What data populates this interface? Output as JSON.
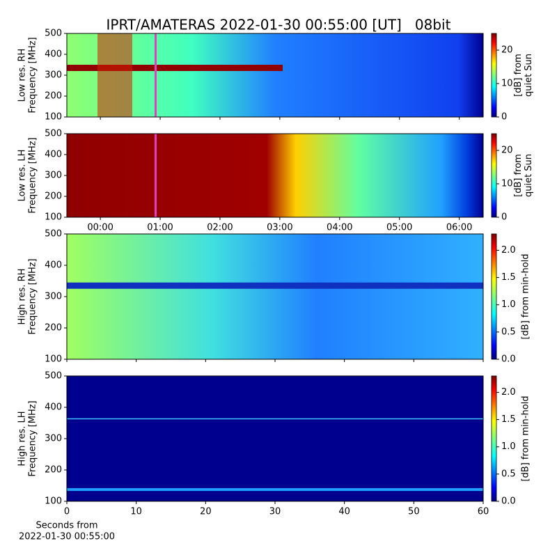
{
  "title": "IPRT/AMATERAS 2022-01-30 00:55:00 [UT]   08bit",
  "chart_data": [
    {
      "type": "heatmap",
      "ylabel": [
        "Low res. RH",
        "Frequency [MHz]"
      ],
      "ylim": [
        100,
        500
      ],
      "yticks": [
        100,
        200,
        300,
        400,
        500
      ],
      "xlim": [
        -0.56,
        6.4
      ],
      "clim": [
        0,
        25
      ],
      "cticks": [
        0,
        10,
        20
      ],
      "clabel": [
        "[dB] from",
        "quiet Sun"
      ]
    },
    {
      "type": "heatmap",
      "ylabel": [
        "Low res. LH",
        "Frequency [MHz]"
      ],
      "ylim": [
        100,
        500
      ],
      "yticks": [
        100,
        200,
        300,
        400,
        500
      ],
      "xlim": [
        -0.56,
        6.4
      ],
      "xticks": [
        {
          "value": 0,
          "label": "00:00"
        },
        {
          "value": 1,
          "label": "01:00"
        },
        {
          "value": 2,
          "label": "02:00"
        },
        {
          "value": 3,
          "label": "03:00"
        },
        {
          "value": 4,
          "label": "04:00"
        },
        {
          "value": 5,
          "label": "05:00"
        },
        {
          "value": 6,
          "label": "06:00"
        }
      ],
      "clim": [
        0,
        25
      ],
      "cticks": [
        0,
        10,
        20
      ],
      "clabel": [
        "[dB] from",
        "quiet Sun"
      ]
    },
    {
      "type": "heatmap",
      "ylabel": [
        "High res. RH",
        "Frequency [MHz]"
      ],
      "ylim": [
        100,
        500
      ],
      "yticks": [
        100,
        200,
        300,
        400,
        500
      ],
      "xlim": [
        0,
        60
      ],
      "clim": [
        0,
        2.3
      ],
      "cticks": [
        {
          "value": 0,
          "label": "0.0"
        },
        {
          "value": 0.5,
          "label": "0.5"
        },
        {
          "value": 1,
          "label": "1.0"
        },
        {
          "value": 1.5,
          "label": "1.5"
        },
        {
          "value": 2,
          "label": "2.0"
        }
      ],
      "clabel": [
        "[dB] from min-hold"
      ]
    },
    {
      "type": "heatmap",
      "ylabel": [
        "High res. LH",
        "Frequency [MHz]"
      ],
      "ylim": [
        100,
        500
      ],
      "yticks": [
        100,
        200,
        300,
        400,
        500
      ],
      "xlim": [
        0,
        60
      ],
      "xticks": [
        0,
        10,
        20,
        30,
        40,
        50,
        60
      ],
      "xlabel": [
        "Seconds from",
        "2022-01-30 00:55:00"
      ],
      "clim": [
        0,
        2.3
      ],
      "cticks": [
        {
          "value": 0,
          "label": "0.0"
        },
        {
          "value": 0.5,
          "label": "0.5"
        },
        {
          "value": 1,
          "label": "1.0"
        },
        {
          "value": 1.5,
          "label": "1.5"
        },
        {
          "value": 2,
          "label": "2.0"
        }
      ],
      "clabel": [
        "[dB] from min-hold"
      ]
    }
  ]
}
